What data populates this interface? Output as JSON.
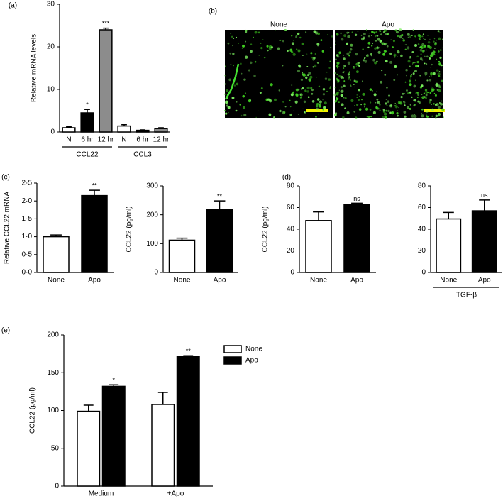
{
  "chart_data": [
    {
      "type": "bar",
      "panel_label": "(a)",
      "y_label": "Relative mRNA levels",
      "categories": [
        "N",
        "6 hr",
        "12 hr",
        "N",
        "6 hr",
        "12 hr"
      ],
      "group_labels": [
        "CCL22",
        "CCL3"
      ],
      "values": [
        1.0,
        4.5,
        24.0,
        1.4,
        0.4,
        0.8
      ],
      "errors": [
        0.2,
        0.8,
        0.4,
        0.3,
        0.1,
        0.2
      ],
      "colors": [
        "#ffffff",
        "#000000",
        "#8c8c8c",
        "#ffffff",
        "#000000",
        "#8c8c8c"
      ],
      "value_annotations": [
        null,
        "*",
        "***",
        null,
        null,
        null
      ],
      "ylim": [
        0,
        30
      ],
      "yticks": [
        0,
        10,
        20,
        30
      ]
    },
    {
      "type": "bar",
      "panel_label": "(c)",
      "y_label": "Relative CCL22 mRNA",
      "categories": [
        "None",
        "Apo"
      ],
      "values": [
        1.0,
        2.15
      ],
      "errors": [
        0.05,
        0.15
      ],
      "colors": [
        "#ffffff",
        "#000000"
      ],
      "value_annotations": [
        null,
        "**"
      ],
      "ylim": [
        0,
        2.5
      ],
      "yticks": [
        {
          "value": 0,
          "label": "0·0"
        },
        {
          "value": 0.5,
          "label": "0·5"
        },
        {
          "value": 1,
          "label": "1·0"
        },
        {
          "value": 1.5,
          "label": "1·5"
        },
        {
          "value": 2,
          "label": "2·0"
        },
        {
          "value": 2.5,
          "label": "2·5"
        }
      ]
    },
    {
      "type": "bar",
      "y_label": "CCL22 (pg/ml)",
      "categories": [
        "None",
        "Apo"
      ],
      "values": [
        112,
        218
      ],
      "errors": [
        7,
        30
      ],
      "colors": [
        "#ffffff",
        "#000000"
      ],
      "value_annotations": [
        null,
        "**"
      ],
      "ylim": [
        0,
        300
      ],
      "yticks": [
        0,
        100,
        200,
        300
      ]
    },
    {
      "type": "bar",
      "panel_label": "(d)",
      "y_label": "CCL22 (pg/ml)",
      "categories": [
        "None",
        "Apo"
      ],
      "values": [
        48,
        62.5
      ],
      "errors": [
        8,
        1.5
      ],
      "colors": [
        "#ffffff",
        "#000000"
      ],
      "value_annotations": [
        null,
        "ns"
      ],
      "ylim": [
        0,
        80
      ],
      "yticks": [
        0,
        20,
        40,
        60,
        80
      ]
    },
    {
      "type": "bar",
      "categories": [
        "None",
        "Apo"
      ],
      "group_labels": [
        "TGF-β"
      ],
      "values": [
        49.5,
        57
      ],
      "errors": [
        6,
        10
      ],
      "colors": [
        "#ffffff",
        "#000000"
      ],
      "value_annotations": [
        null,
        "ns"
      ],
      "ylim": [
        0,
        80
      ],
      "yticks": [
        0,
        20,
        40,
        60,
        80
      ]
    },
    {
      "type": "bar",
      "panel_label": "(e)",
      "y_label": "CCL22 (pg/ml)",
      "categories": [
        "Medium",
        "+Apo"
      ],
      "legend": "right",
      "series": [
        {
          "name": "None",
          "color": "#ffffff",
          "values": [
            99,
            108
          ],
          "errors": [
            8,
            16
          ],
          "value_annotations": [
            null,
            null
          ]
        },
        {
          "name": "Apo",
          "color": "#000000",
          "values": [
            132,
            172
          ],
          "errors": [
            2,
            0.5
          ],
          "value_annotations": [
            "*",
            "**"
          ]
        }
      ],
      "ylim": [
        0,
        200
      ],
      "yticks": [
        0,
        50,
        100,
        150,
        200
      ]
    }
  ],
  "image_panel": {
    "label": "(b)",
    "titles": [
      "None",
      "Apo"
    ]
  }
}
